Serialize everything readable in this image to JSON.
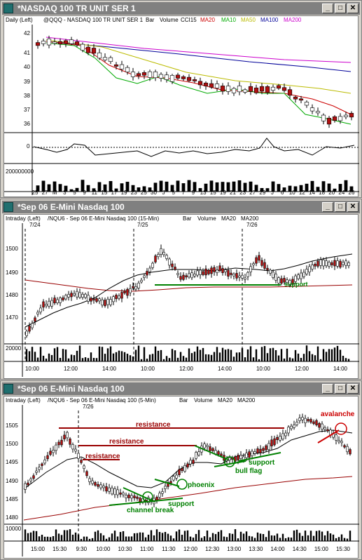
{
  "windows": [
    {
      "title": "*NASDAQ 100 TR UNIT SER 1",
      "header": {
        "label": "Daily (Left)",
        "symbol": "@QQQ - NASDAQ 100 TR UNIT SER 1",
        "type": "Bar",
        "volume": "Volume",
        "cci": "CCI15",
        "ma": [
          {
            "t": "MA20",
            "c": "#cc0000"
          },
          {
            "t": "MA10",
            "c": "#00aa00"
          },
          {
            "t": "MA50",
            "c": "#bbbb00"
          },
          {
            "t": "MA100",
            "c": "#000099"
          },
          {
            "t": "MA200",
            "c": "#cc00cc"
          }
        ]
      },
      "y_ticks": [
        "42",
        "41",
        "40",
        "39",
        "38",
        "37",
        "36"
      ],
      "cci_tick": "0",
      "vol_tick": "200000000",
      "x_labels": [
        "25",
        "27",
        "M",
        "3",
        "5",
        "9",
        "11",
        "15",
        "17",
        "19",
        "23",
        "25",
        "30",
        "J",
        "5",
        "7",
        "9",
        "13",
        "15",
        "19",
        "21",
        "23",
        "27",
        "29",
        "J",
        "6",
        "10",
        "12",
        "14",
        "18",
        "20",
        "24",
        "26"
      ]
    },
    {
      "title": "*Sep 06  E-Mini Nasdaq 100",
      "header": {
        "label": "Intraday (Left)",
        "symbol": "/NQU6 - Sep 06  E-Mini Nasdaq 100 (15-Min)",
        "type": "Bar",
        "volume": "Volume",
        "ma": [
          {
            "t": "MA20",
            "c": "#000000"
          },
          {
            "t": "MA200",
            "c": "#000000"
          }
        ]
      },
      "dates": [
        "7/24",
        "7/25",
        "7/26"
      ],
      "y_ticks": [
        "1500",
        "1490",
        "1480",
        "1470"
      ],
      "vol_tick": "20000",
      "x_labels": [
        "10:00",
        "12:00",
        "14:00",
        "10:00",
        "12:00",
        "14:00",
        "10:00",
        "12:00",
        "14:00"
      ],
      "annotations": {
        "support": "support"
      }
    },
    {
      "title": "*Sep 06  E-Mini Nasdaq 100",
      "header": {
        "label": "Intraday (Left)",
        "symbol": "/NQU6 - Sep 06  E-Mini Nasdaq 100 (5-Min)",
        "type": "Bar",
        "volume": "Volume",
        "ma": [
          {
            "t": "MA20",
            "c": "#000000"
          },
          {
            "t": "MA200",
            "c": "#000000"
          }
        ]
      },
      "dates": [
        "7/26"
      ],
      "y_ticks": [
        "1505",
        "1500",
        "1495",
        "1490",
        "1485",
        "1480"
      ],
      "vol_tick": "10000",
      "x_labels": [
        "15:00",
        "15:30",
        "9:30",
        "10:00",
        "10:30",
        "11:00",
        "11:30",
        "12:00",
        "12:30",
        "13:00",
        "13:30",
        "14:00",
        "14:30",
        "15:00",
        "15:30"
      ],
      "annotations": {
        "resistance1": "resistance",
        "resistance2": "resistance",
        "resistance3": "resistance",
        "support1": "support",
        "channel_break": "channel break",
        "phoenix": "phoenix",
        "bull_flag": "bull flag",
        "support2": "support",
        "avalanche": "avalanche"
      }
    }
  ],
  "colors": {
    "up": "#ffffff",
    "down": "#b01010",
    "green": "#008000",
    "red": "#990000",
    "ma_green": "#00aa00"
  }
}
